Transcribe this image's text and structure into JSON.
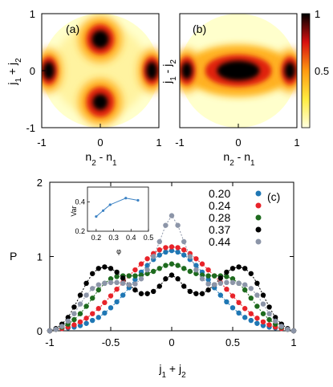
{
  "chart_data": [
    {
      "panel": "(a)",
      "type": "heatmap",
      "xlabel": "n2 - n1",
      "ylabel": "j1 + j2",
      "xlim": [
        -1,
        1
      ],
      "ylim": [
        -1,
        1
      ],
      "x_ticks": [
        "-1",
        "0",
        "1"
      ],
      "y_ticks": [
        "-1",
        "0",
        "1"
      ],
      "hot_spots": [
        {
          "x": 0.0,
          "y": 0.55,
          "intensity": 0.95
        },
        {
          "x": 0.0,
          "y": -0.55,
          "intensity": 0.85
        },
        {
          "x": -0.88,
          "y": 0.0,
          "intensity": 1.0
        },
        {
          "x": 0.88,
          "y": 0.0,
          "intensity": 1.0
        }
      ]
    },
    {
      "panel": "(b)",
      "type": "heatmap",
      "xlabel": "n2 - n1",
      "ylabel": "j1 - j2",
      "xlim": [
        -1,
        1
      ],
      "ylim": [
        -1,
        1
      ],
      "x_ticks": [
        "-1",
        "0",
        "1"
      ],
      "hot_spots": [
        {
          "x": 0.0,
          "y": 0.0,
          "intensity": 1.0
        },
        {
          "x": -0.88,
          "y": 0.0,
          "intensity": 0.95
        },
        {
          "x": 0.88,
          "y": 0.0,
          "intensity": 0.95
        }
      ],
      "colorbar_ticks": [
        "1",
        "0.5"
      ]
    },
    {
      "panel": "(c)",
      "type": "line",
      "xlabel": "j1 + j2",
      "ylabel": "P",
      "xlim": [
        -1,
        1
      ],
      "ylim": [
        0,
        2
      ],
      "x_ticks": [
        "-1",
        "-0.5",
        "0",
        "0.5",
        "1"
      ],
      "y_ticks": [
        "0",
        "1",
        "2"
      ],
      "x": [
        -1.0,
        -0.95,
        -0.9,
        -0.85,
        -0.8,
        -0.75,
        -0.7,
        -0.65,
        -0.6,
        -0.55,
        -0.5,
        -0.45,
        -0.4,
        -0.35,
        -0.3,
        -0.25,
        -0.2,
        -0.15,
        -0.1,
        -0.05,
        0.0,
        0.05,
        0.1,
        0.15,
        0.2,
        0.25,
        0.3,
        0.35,
        0.4,
        0.45,
        0.5,
        0.55,
        0.6,
        0.65,
        0.7,
        0.75,
        0.8,
        0.85,
        0.9,
        0.95,
        1.0
      ],
      "series": [
        {
          "name": "0.20",
          "color": "#1f77b4",
          "values": [
            0.0,
            0.02,
            0.03,
            0.04,
            0.05,
            0.07,
            0.1,
            0.14,
            0.18,
            0.24,
            0.31,
            0.39,
            0.48,
            0.58,
            0.69,
            0.79,
            0.88,
            0.96,
            1.02,
            1.06,
            1.08,
            1.06,
            1.02,
            0.96,
            0.88,
            0.79,
            0.69,
            0.58,
            0.48,
            0.39,
            0.31,
            0.24,
            0.18,
            0.14,
            0.1,
            0.07,
            0.05,
            0.04,
            0.03,
            0.02,
            0.0
          ]
        },
        {
          "name": "0.24",
          "color": "#e8232a",
          "values": [
            0.0,
            0.02,
            0.03,
            0.05,
            0.08,
            0.12,
            0.17,
            0.23,
            0.3,
            0.38,
            0.47,
            0.56,
            0.65,
            0.74,
            0.82,
            0.9,
            0.97,
            1.04,
            1.09,
            1.12,
            1.13,
            1.12,
            1.09,
            1.04,
            0.97,
            0.9,
            0.82,
            0.74,
            0.65,
            0.56,
            0.47,
            0.38,
            0.3,
            0.23,
            0.17,
            0.12,
            0.08,
            0.05,
            0.03,
            0.02,
            0.0
          ]
        },
        {
          "name": "0.28",
          "color": "#1e6b1e",
          "values": [
            0.0,
            0.02,
            0.05,
            0.09,
            0.15,
            0.23,
            0.33,
            0.44,
            0.55,
            0.64,
            0.7,
            0.73,
            0.74,
            0.74,
            0.74,
            0.75,
            0.77,
            0.8,
            0.84,
            0.88,
            0.9,
            0.88,
            0.84,
            0.8,
            0.77,
            0.75,
            0.74,
            0.74,
            0.74,
            0.73,
            0.7,
            0.64,
            0.55,
            0.44,
            0.33,
            0.23,
            0.15,
            0.09,
            0.05,
            0.02,
            0.0
          ]
        },
        {
          "name": "0.37",
          "color": "#000000",
          "values": [
            0.0,
            0.03,
            0.09,
            0.18,
            0.32,
            0.48,
            0.64,
            0.77,
            0.84,
            0.86,
            0.84,
            0.79,
            0.71,
            0.62,
            0.55,
            0.5,
            0.5,
            0.53,
            0.6,
            0.7,
            0.75,
            0.7,
            0.6,
            0.53,
            0.5,
            0.5,
            0.55,
            0.62,
            0.71,
            0.79,
            0.84,
            0.86,
            0.84,
            0.77,
            0.64,
            0.48,
            0.32,
            0.18,
            0.09,
            0.03,
            0.0
          ]
        },
        {
          "name": "0.44",
          "color": "#8c95a8",
          "values": [
            0.0,
            0.02,
            0.06,
            0.13,
            0.23,
            0.36,
            0.48,
            0.57,
            0.62,
            0.64,
            0.65,
            0.65,
            0.64,
            0.62,
            0.63,
            0.7,
            0.82,
            1.0,
            1.2,
            1.42,
            1.55,
            1.42,
            1.2,
            1.0,
            0.82,
            0.7,
            0.63,
            0.62,
            0.64,
            0.65,
            0.65,
            0.64,
            0.62,
            0.57,
            0.48,
            0.36,
            0.23,
            0.13,
            0.06,
            0.02,
            0.0
          ]
        }
      ],
      "inset": {
        "xlabel": "φ",
        "ylabel": "Var",
        "x": [
          0.2,
          0.24,
          0.28,
          0.37,
          0.44
        ],
        "y": [
          0.3,
          0.34,
          0.38,
          0.425,
          0.41
        ],
        "x_ticks": [
          "0.2",
          "0.3",
          "0.4",
          "0.5"
        ],
        "y_ticks": [
          "0.2",
          "0.4"
        ],
        "xlim": [
          0.15,
          0.5
        ],
        "ylim": [
          0.2,
          0.5
        ],
        "color": "#3b82c4"
      }
    }
  ]
}
